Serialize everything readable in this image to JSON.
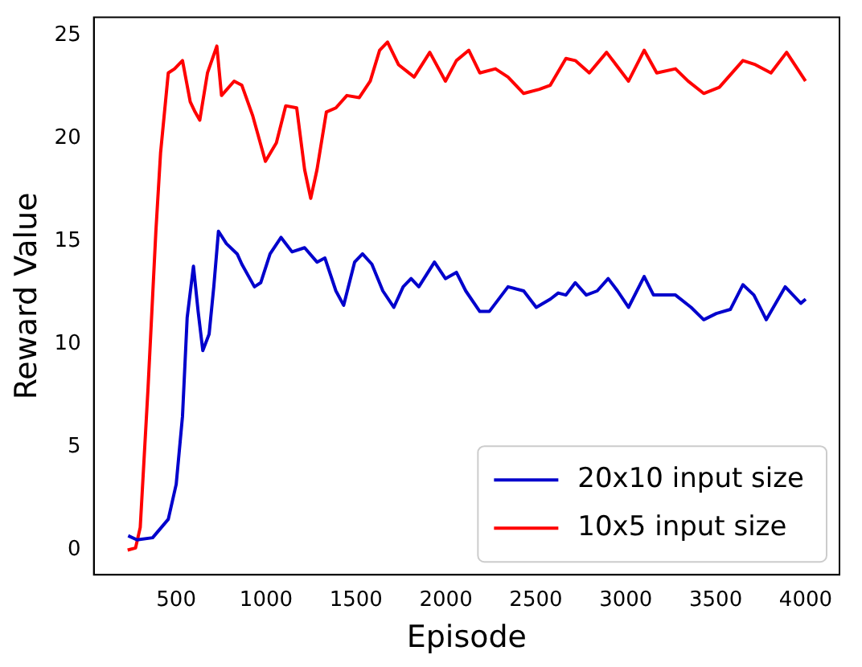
{
  "chart_data": {
    "type": "line",
    "xlabel": "Episode",
    "ylabel": "Reward Value",
    "xlim": [
      42,
      4188
    ],
    "ylim": [
      -1.2,
      25.9
    ],
    "xticks": [
      500,
      1000,
      1500,
      2000,
      2500,
      3000,
      3500,
      4000
    ],
    "yticks": [
      0,
      5,
      10,
      15,
      20,
      25
    ],
    "legend": "bottom right",
    "grid": false,
    "marker": "none",
    "line_style": "solid",
    "series": [
      {
        "name": "20x10 input size",
        "color": "#0000cc",
        "x": [
          233,
          282,
          369,
          456,
          500,
          535,
          561,
          596,
          622,
          648,
          683,
          709,
          735,
          779,
          839,
          865,
          935,
          970,
          1022,
          1083,
          1144,
          1214,
          1283,
          1327,
          1388,
          1431,
          1492,
          1536,
          1588,
          1649,
          1710,
          1762,
          1806,
          1849,
          1936,
          1997,
          2058,
          2110,
          2188,
          2241,
          2345,
          2432,
          2502,
          2580,
          2624,
          2667,
          2719,
          2780,
          2841,
          2902,
          2954,
          3015,
          3102,
          3154,
          3276,
          3363,
          3433,
          3503,
          3581,
          3651,
          3712,
          3781,
          3886,
          3973,
          4000
        ],
        "values": [
          0.7,
          0.5,
          0.6,
          1.5,
          3.2,
          6.5,
          11.3,
          13.8,
          11.6,
          9.7,
          10.5,
          12.8,
          15.5,
          14.9,
          14.4,
          13.9,
          12.8,
          13.0,
          14.4,
          15.2,
          14.5,
          14.7,
          14.0,
          14.2,
          12.6,
          11.9,
          14.0,
          14.4,
          13.9,
          12.6,
          11.8,
          12.8,
          13.2,
          12.8,
          14.0,
          13.2,
          13.5,
          12.6,
          11.6,
          11.6,
          12.8,
          12.6,
          11.8,
          12.2,
          12.5,
          12.4,
          13.0,
          12.4,
          12.6,
          13.2,
          12.6,
          11.8,
          13.3,
          12.4,
          12.4,
          11.8,
          11.2,
          11.5,
          11.7,
          12.9,
          12.4,
          11.2,
          12.8,
          12.0,
          12.2
        ]
      },
      {
        "name": "10x5 input size",
        "color": "#ff0000",
        "x": [
          230,
          274,
          300,
          343,
          387,
          413,
          456,
          491,
          535,
          578,
          605,
          631,
          674,
          726,
          752,
          822,
          865,
          926,
          996,
          1057,
          1109,
          1170,
          1214,
          1248,
          1283,
          1335,
          1388,
          1449,
          1518,
          1579,
          1631,
          1675,
          1736,
          1823,
          1910,
          1997,
          2058,
          2127,
          2188,
          2275,
          2345,
          2432,
          2519,
          2580,
          2667,
          2719,
          2797,
          2893,
          3015,
          3102,
          3172,
          3276,
          3346,
          3433,
          3520,
          3651,
          3720,
          3807,
          3894,
          3999
        ],
        "values": [
          0.0,
          0.1,
          1.1,
          7.8,
          15.5,
          19.3,
          23.2,
          23.4,
          23.8,
          21.8,
          21.3,
          20.9,
          23.2,
          24.5,
          22.1,
          22.8,
          22.6,
          21.1,
          18.9,
          19.8,
          21.6,
          21.5,
          18.5,
          17.1,
          18.5,
          21.3,
          21.5,
          22.1,
          22.0,
          22.8,
          24.3,
          24.7,
          23.6,
          23.0,
          24.2,
          22.8,
          23.8,
          24.3,
          23.2,
          23.4,
          23.0,
          22.2,
          22.4,
          22.6,
          23.9,
          23.8,
          23.2,
          24.2,
          22.8,
          24.3,
          23.2,
          23.4,
          22.8,
          22.2,
          22.5,
          23.8,
          23.6,
          23.2,
          24.2,
          22.8
        ]
      }
    ]
  }
}
